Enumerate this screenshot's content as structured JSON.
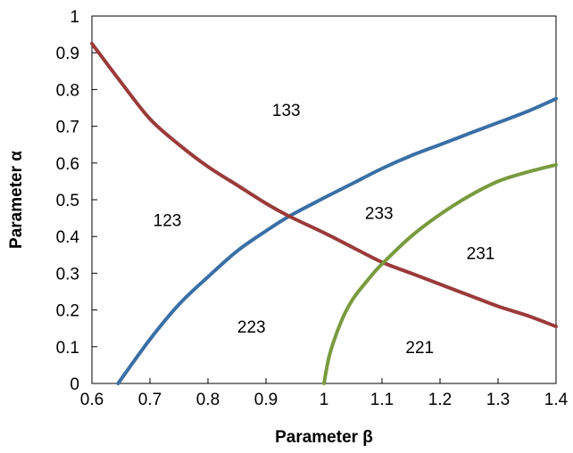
{
  "chart_data": {
    "type": "line",
    "xlabel": "Parameter β",
    "ylabel": "Parameter α",
    "xlim": [
      0.6,
      1.4
    ],
    "ylim": [
      0,
      1
    ],
    "grid": false,
    "x_ticks": [
      "0.6",
      "0.7",
      "0.8",
      "0.9",
      "1",
      "1.1",
      "1.2",
      "1.3",
      "1.4"
    ],
    "y_ticks": [
      "0",
      "0.1",
      "0.2",
      "0.3",
      "0.4",
      "0.5",
      "0.6",
      "0.7",
      "0.8",
      "0.9",
      "1"
    ],
    "series": [
      {
        "color": "#3a6fa6",
        "x": [
          0.645,
          0.7,
          0.75,
          0.8,
          0.85,
          0.9,
          0.94,
          1.0,
          1.05,
          1.1,
          1.15,
          1.2,
          1.25,
          1.3,
          1.35,
          1.4
        ],
        "y": [
          0.0,
          0.12,
          0.215,
          0.29,
          0.36,
          0.415,
          0.455,
          0.505,
          0.545,
          0.585,
          0.62,
          0.65,
          0.68,
          0.71,
          0.74,
          0.775
        ]
      },
      {
        "color": "#9b3a3a",
        "x": [
          0.6,
          0.65,
          0.7,
          0.75,
          0.8,
          0.85,
          0.9,
          0.94,
          1.0,
          1.05,
          1.1,
          1.15,
          1.2,
          1.25,
          1.3,
          1.35,
          1.4
        ],
        "y": [
          0.925,
          0.82,
          0.72,
          0.65,
          0.59,
          0.54,
          0.49,
          0.455,
          0.41,
          0.37,
          0.33,
          0.3,
          0.27,
          0.24,
          0.21,
          0.185,
          0.155
        ]
      },
      {
        "color": "#7a9a3e",
        "x": [
          1.0,
          1.01,
          1.03,
          1.05,
          1.08,
          1.1,
          1.15,
          1.2,
          1.25,
          1.3,
          1.35,
          1.4
        ],
        "y": [
          0.0,
          0.08,
          0.17,
          0.23,
          0.29,
          0.325,
          0.4,
          0.46,
          0.51,
          0.55,
          0.575,
          0.595
        ]
      }
    ],
    "annotations": [
      {
        "text": "133",
        "x": 0.935,
        "y": 0.745
      },
      {
        "text": "123",
        "x": 0.73,
        "y": 0.445
      },
      {
        "text": "233",
        "x": 1.095,
        "y": 0.465
      },
      {
        "text": "231",
        "x": 1.27,
        "y": 0.355
      },
      {
        "text": "223",
        "x": 0.875,
        "y": 0.155
      },
      {
        "text": "221",
        "x": 1.165,
        "y": 0.1
      }
    ]
  }
}
